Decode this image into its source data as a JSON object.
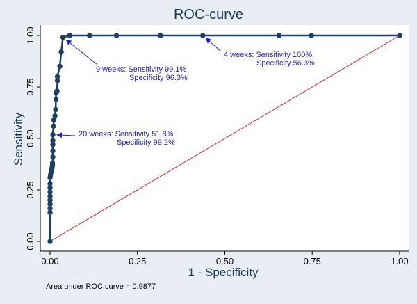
{
  "chart_data": {
    "type": "line",
    "title": "ROC-curve",
    "xlabel": "1 - Specificity",
    "ylabel": "Sensitivity",
    "xlim": [
      0,
      1
    ],
    "ylim": [
      0,
      1
    ],
    "xticks": [
      "0.00",
      "0.25",
      "0.50",
      "0.75",
      "1.00"
    ],
    "yticks": [
      "0.00",
      "0.25",
      "0.50",
      "0.75",
      "1.00"
    ],
    "grid": false,
    "colors": {
      "curve": "#1f3f60",
      "reference": "#e02020",
      "annotation": "#1f1fcc",
      "background": "#e8eef3",
      "plot_background": "#ffffff"
    },
    "series": [
      {
        "values": [
          [
            0.0,
            0.0
          ],
          [
            0.0,
            0.14
          ],
          [
            0.0,
            0.16
          ],
          [
            0.0,
            0.18
          ],
          [
            0.0,
            0.2
          ],
          [
            0.0,
            0.22
          ],
          [
            0.0,
            0.24
          ],
          [
            0.0,
            0.26
          ],
          [
            0.0,
            0.28
          ],
          [
            0.0,
            0.31
          ],
          [
            0.001,
            0.32
          ],
          [
            0.002,
            0.33
          ],
          [
            0.004,
            0.34
          ],
          [
            0.005,
            0.35
          ],
          [
            0.006,
            0.36
          ],
          [
            0.007,
            0.37
          ],
          [
            0.007,
            0.38
          ],
          [
            0.008,
            0.41
          ],
          [
            0.008,
            0.44
          ],
          [
            0.008,
            0.47
          ],
          [
            0.008,
            0.49
          ],
          [
            0.008,
            0.518
          ],
          [
            0.01,
            0.56
          ],
          [
            0.011,
            0.59
          ],
          [
            0.014,
            0.61
          ],
          [
            0.016,
            0.64
          ],
          [
            0.017,
            0.69
          ],
          [
            0.017,
            0.72
          ],
          [
            0.02,
            0.73
          ],
          [
            0.021,
            0.78
          ],
          [
            0.021,
            0.8
          ],
          [
            0.028,
            0.85
          ],
          [
            0.032,
            0.92
          ],
          [
            0.037,
            0.991
          ],
          [
            0.056,
            1.0
          ],
          [
            0.113,
            1.0
          ],
          [
            0.19,
            1.0
          ],
          [
            0.316,
            1.0
          ],
          [
            0.437,
            1.0
          ],
          [
            0.655,
            1.0
          ],
          [
            0.748,
            1.0
          ],
          [
            1.0,
            1.0
          ]
        ]
      },
      {
        "values": [
          [
            0,
            0
          ],
          [
            1,
            1
          ]
        ]
      }
    ],
    "annotations": [
      {
        "line1": "4 weeks: Sensitivity 100%",
        "line2": "Specificity 56.3%",
        "x": 0.437,
        "y": 1.0
      },
      {
        "line1": "9 weeks: Sensitivity 99.1%",
        "line2": "Specificity 96.3%",
        "x": 0.037,
        "y": 0.991
      },
      {
        "line1": "20 weeks: Sensitivity 51.8%",
        "line2": "Specificity 99.2%",
        "x": 0.008,
        "y": 0.518
      }
    ],
    "footer": "Area under ROC curve = 0.9877"
  }
}
